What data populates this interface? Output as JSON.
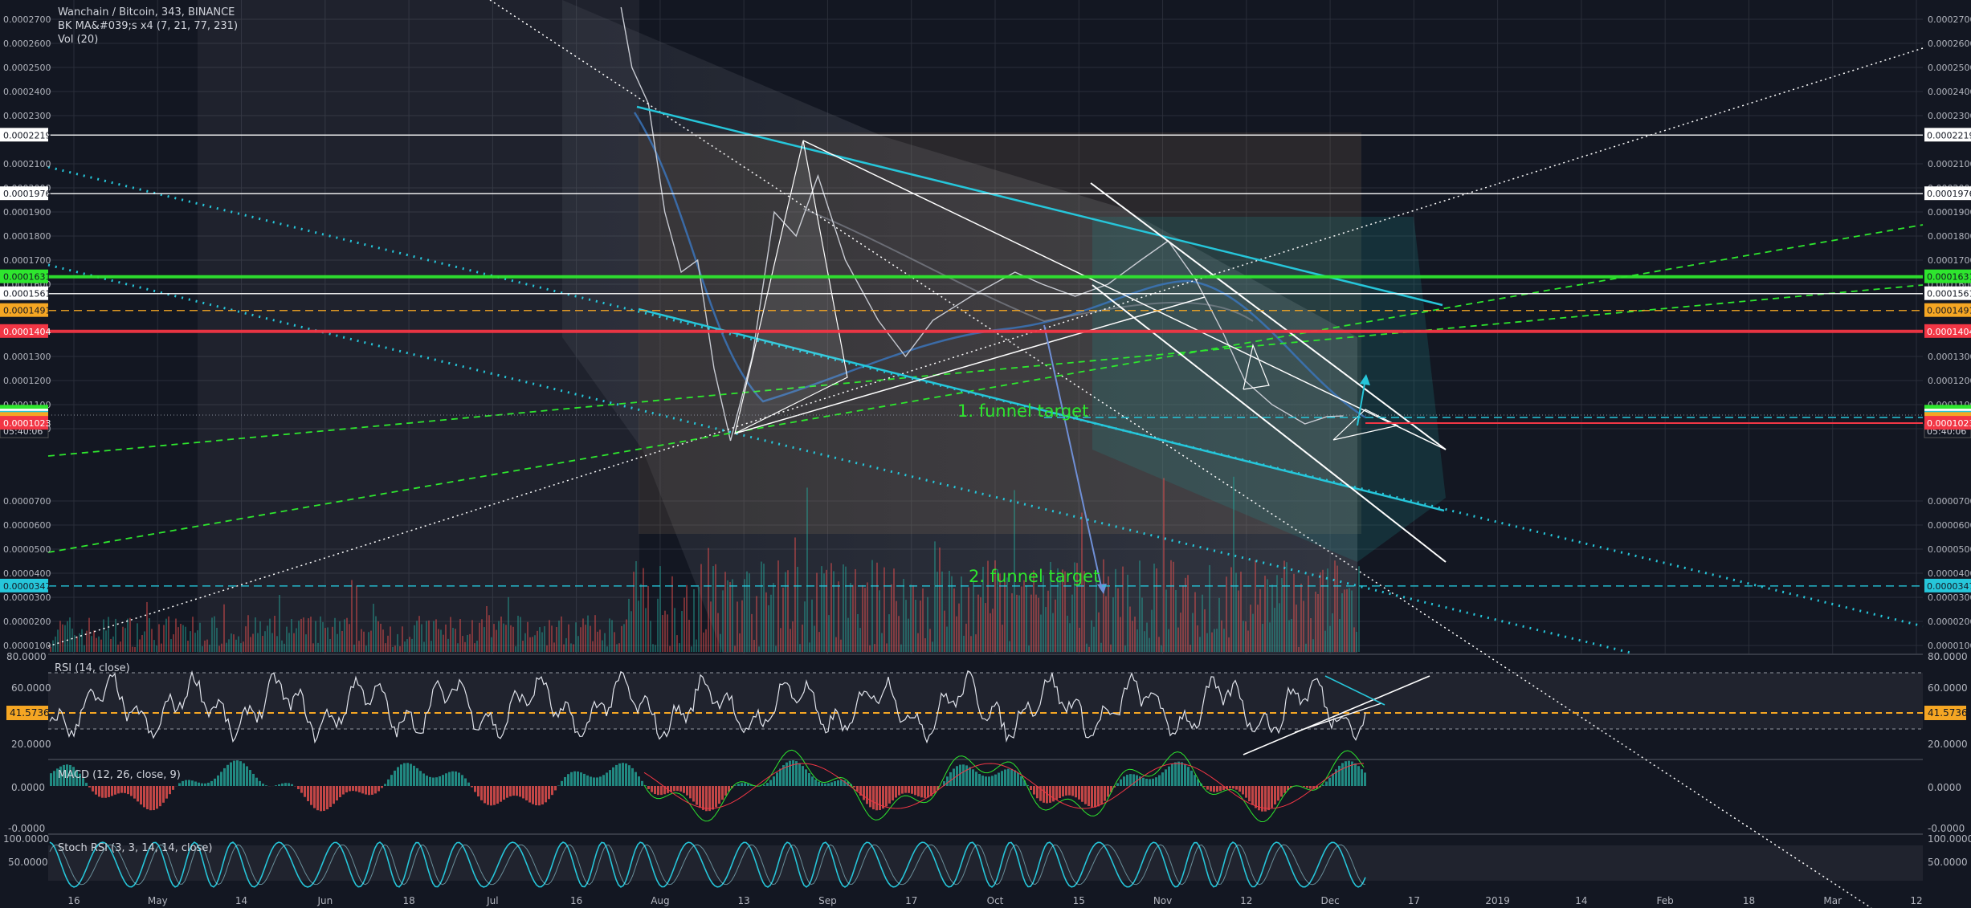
{
  "header": {
    "title": "Wanchain / Bitcoin, 343, BINANCE",
    "study_ma": "BK MA&#039;s x4 (7, 21, 77, 231)",
    "study_vol": "Vol (20)"
  },
  "annotations": {
    "funnel_1": "1. funnel target",
    "funnel_2": "2. funnel target"
  },
  "colors": {
    "background": "#131722",
    "grid": "#2a2e39",
    "cyan": "#26c6da",
    "green": "#2ee62e",
    "red": "#f23645",
    "orange": "#f5a623",
    "white": "#ffffff",
    "candle_up": "#26a69a",
    "candle_down": "#ef5350"
  },
  "chart_data": {
    "type": "line",
    "price_scale": {
      "ticks": [
        "0.0002700",
        "0.0002600",
        "0.0002500",
        "0.0002400",
        "0.0002300",
        "0.0002100",
        "0.0002000",
        "0.0001900",
        "0.0001800",
        "0.0001700",
        "0.0001600",
        "0.0001300",
        "0.0001200",
        "0.0001100",
        "0.0001000",
        "0.0000700",
        "0.0000600",
        "0.0000500",
        "0.0000400",
        "0.0000300",
        "0.0000200",
        "0.0000100"
      ],
      "range": [
        7e-06,
        0.000278
      ]
    },
    "price_labels": [
      {
        "value": "0.0002219",
        "color": "white"
      },
      {
        "value": "0.0001976",
        "color": "white"
      },
      {
        "value": "0.0001631",
        "color": "green"
      },
      {
        "value": "0.0001561",
        "color": "white"
      },
      {
        "value": "0.0001491",
        "color": "orange"
      },
      {
        "value": "0.0001404",
        "color": "red"
      },
      {
        "value": "0.0001069",
        "color": "green"
      },
      {
        "value": "0.0001053",
        "color": "white"
      },
      {
        "value": "05:40:06",
        "color": "white",
        "countdown": true
      },
      {
        "value": "0.0001044",
        "color": "cyan"
      },
      {
        "value": "0.0001039",
        "color": "orange"
      },
      {
        "value": "0.0001023",
        "color": "red"
      },
      {
        "value": "0.0000347",
        "color": "cyan"
      }
    ],
    "horizontal_levels": [
      {
        "price": 0.0002219,
        "color": "white",
        "style": "solid"
      },
      {
        "price": 0.0001976,
        "color": "white",
        "style": "solid"
      },
      {
        "price": 0.0001631,
        "color": "green",
        "style": "solid",
        "thick": true
      },
      {
        "price": 0.0001561,
        "color": "white",
        "style": "solid"
      },
      {
        "price": 0.0001491,
        "color": "orange",
        "style": "dashed"
      },
      {
        "price": 0.0001404,
        "color": "red",
        "style": "solid",
        "thick": true
      },
      {
        "price": 3.47e-05,
        "color": "cyan",
        "style": "dashed"
      }
    ],
    "time_axis": [
      "16",
      "May",
      "14",
      "Jun",
      "18",
      "Jul",
      "16",
      "Aug",
      "13",
      "Sep",
      "17",
      "Oct",
      "15",
      "Nov",
      "12",
      "Dec",
      "17",
      "2019",
      "14",
      "Feb",
      "18",
      "Mar",
      "12"
    ],
    "price_path": [
      {
        "date": "2018-07-25",
        "price": 0.000275
      },
      {
        "date": "2018-07-27",
        "price": 0.00025
      },
      {
        "date": "2018-07-30",
        "price": 0.000235
      },
      {
        "date": "2018-08-02",
        "price": 0.00019
      },
      {
        "date": "2018-08-05",
        "price": 0.000165
      },
      {
        "date": "2018-08-08",
        "price": 0.00017
      },
      {
        "date": "2018-08-11",
        "price": 0.000125
      },
      {
        "date": "2018-08-14",
        "price": 9.5e-05
      },
      {
        "date": "2018-08-18",
        "price": 0.00013
      },
      {
        "date": "2018-08-22",
        "price": 0.00019
      },
      {
        "date": "2018-08-26",
        "price": 0.00018
      },
      {
        "date": "2018-08-30",
        "price": 0.000205
      },
      {
        "date": "2018-09-04",
        "price": 0.00017
      },
      {
        "date": "2018-09-10",
        "price": 0.000145
      },
      {
        "date": "2018-09-15",
        "price": 0.00013
      },
      {
        "date": "2018-09-20",
        "price": 0.000145
      },
      {
        "date": "2018-09-27",
        "price": 0.000155
      },
      {
        "date": "2018-10-05",
        "price": 0.000165
      },
      {
        "date": "2018-10-10",
        "price": 0.00016
      },
      {
        "date": "2018-10-16",
        "price": 0.000155
      },
      {
        "date": "2018-10-22",
        "price": 0.00016
      },
      {
        "date": "2018-10-28",
        "price": 0.00017
      },
      {
        "date": "2018-11-02",
        "price": 0.000178
      },
      {
        "date": "2018-11-07",
        "price": 0.000162
      },
      {
        "date": "2018-11-12",
        "price": 0.00014
      },
      {
        "date": "2018-11-16",
        "price": 0.00012
      },
      {
        "date": "2018-11-21",
        "price": 0.00011
      },
      {
        "date": "2018-11-27",
        "price": 0.000102
      },
      {
        "date": "2018-12-01",
        "price": 0.000105
      },
      {
        "date": "2018-12-04",
        "price": 0.0001053
      }
    ],
    "rsi": {
      "label": "RSI (14, close)",
      "ticks": [
        "80.0000",
        "60.0000",
        "20.0000"
      ],
      "current": "41.5736",
      "range": [
        10,
        85
      ]
    },
    "macd": {
      "label": "MACD (12, 26, close, 9)",
      "ticks": [
        "0.0000",
        "-0.0000"
      ]
    },
    "stoch": {
      "label": "Stoch RSI (3, 3, 14, 14, close)",
      "ticks": [
        "100.0000",
        "50.0000"
      ]
    }
  }
}
